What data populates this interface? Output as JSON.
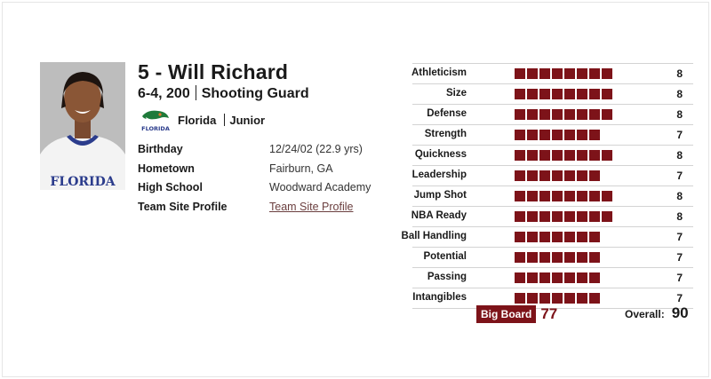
{
  "player": {
    "name": "5 - Will Richard",
    "height_weight": "6-4, 200",
    "position": "Shooting Guard",
    "team": "Florida",
    "class": "Junior"
  },
  "info": [
    {
      "label": "Birthday",
      "value": "12/24/02 (22.9 yrs)",
      "link": false
    },
    {
      "label": "Hometown",
      "value": "Fairburn, GA",
      "link": false
    },
    {
      "label": "High School",
      "value": "Woodward Academy",
      "link": false
    },
    {
      "label": "Team Site Profile",
      "value": "Team Site Profile",
      "link": true
    }
  ],
  "ratings": [
    {
      "label": "Athleticism",
      "value": 8
    },
    {
      "label": "Size",
      "value": 8
    },
    {
      "label": "Defense",
      "value": 8
    },
    {
      "label": "Strength",
      "value": 7
    },
    {
      "label": "Quickness",
      "value": 8
    },
    {
      "label": "Leadership",
      "value": 7
    },
    {
      "label": "Jump Shot",
      "value": 8
    },
    {
      "label": "NBA Ready",
      "value": 8
    },
    {
      "label": "Ball Handling",
      "value": 7
    },
    {
      "label": "Potential",
      "value": 7
    },
    {
      "label": "Passing",
      "value": 7
    },
    {
      "label": "Intangibles",
      "value": 7
    }
  ],
  "big_board": {
    "label": "Big Board",
    "value": "77"
  },
  "overall": {
    "label": "Overall:",
    "value": "90"
  },
  "colors": {
    "accent": "#7d1319",
    "divider": "#d3d3d3"
  },
  "photo": {
    "jersey_text": "FLORIDA"
  },
  "logo": {
    "text": "FLORIDA"
  },
  "icons": [
    "player-photo",
    "florida-gators-logo-icon"
  ]
}
